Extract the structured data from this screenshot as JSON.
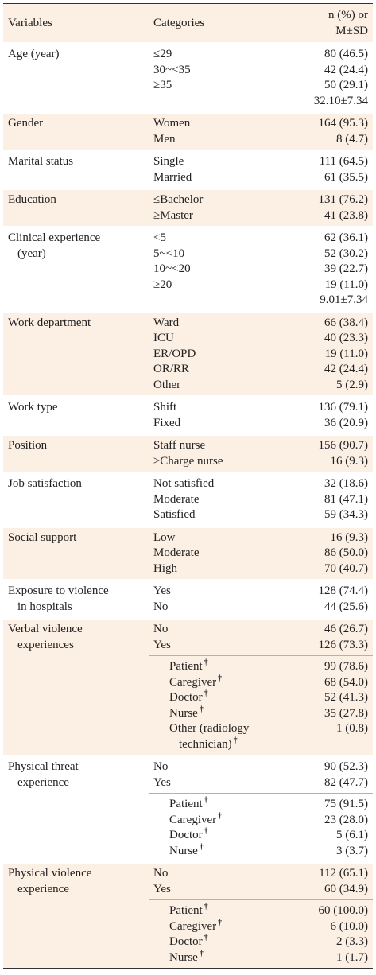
{
  "header": {
    "variables": "Variables",
    "categories": "Categories",
    "value": [
      "n (%) or",
      "M±SD"
    ]
  },
  "rows": [
    {
      "variable": "Age (year)",
      "items": [
        {
          "category": "≤29",
          "value": "80 (46.5)"
        },
        {
          "category": "30~<35",
          "value": "42 (24.4)"
        },
        {
          "category": "≥35",
          "value": "50 (29.1)"
        },
        {
          "value": "32.10±7.34"
        }
      ]
    },
    {
      "variable": "Gender",
      "items": [
        {
          "category": "Women",
          "value": "164 (95.3)"
        },
        {
          "category": "Men",
          "value": "8 (4.7)"
        }
      ]
    },
    {
      "variable": "Marital status",
      "items": [
        {
          "category": "Single",
          "value": "111 (64.5)"
        },
        {
          "category": "Married",
          "value": "61 (35.5)"
        }
      ]
    },
    {
      "variable": "Education",
      "items": [
        {
          "category": "≤Bachelor",
          "value": "131 (76.2)"
        },
        {
          "category": "≥Master",
          "value": "41 (23.8)"
        }
      ]
    },
    {
      "variable": [
        "Clinical experience",
        "(year)"
      ],
      "items": [
        {
          "category": "<5",
          "value": "62 (36.1)"
        },
        {
          "category": "5~<10",
          "value": "52 (30.2)"
        },
        {
          "category": "10~<20",
          "value": "39 (22.7)"
        },
        {
          "category": "≥20",
          "value": "19 (11.0)"
        },
        {
          "value": "9.01±7.34"
        }
      ]
    },
    {
      "variable": "Work department",
      "items": [
        {
          "category": "Ward",
          "value": "66 (38.4)"
        },
        {
          "category": "ICU",
          "value": "40 (23.3)"
        },
        {
          "category": "ER/OPD",
          "value": "19 (11.0)"
        },
        {
          "category": "OR/RR",
          "value": "42 (24.4)"
        },
        {
          "category": "Other",
          "value": "5 (2.9)"
        }
      ]
    },
    {
      "variable": "Work type",
      "items": [
        {
          "category": "Shift",
          "value": "136 (79.1)"
        },
        {
          "category": "Fixed",
          "value": "36 (20.9)"
        }
      ]
    },
    {
      "variable": "Position",
      "items": [
        {
          "category": "Staff nurse",
          "value": "156 (90.7)"
        },
        {
          "category": "≥Charge nurse",
          "value": "16 (9.3)"
        }
      ]
    },
    {
      "variable": "Job satisfaction",
      "items": [
        {
          "category": "Not satisfied",
          "value": "32 (18.6)"
        },
        {
          "category": "Moderate",
          "value": "81 (47.1)"
        },
        {
          "category": "Satisfied",
          "value": "59 (34.3)"
        }
      ]
    },
    {
      "variable": "Social support",
      "items": [
        {
          "category": "Low",
          "value": "16 (9.3)"
        },
        {
          "category": "Moderate",
          "value": "86 (50.0)"
        },
        {
          "category": "High",
          "value": "70 (40.7)"
        }
      ]
    },
    {
      "variable": [
        "Exposure to violence",
        "in hospitals"
      ],
      "items": [
        {
          "category": "Yes",
          "value": "128 (74.4)"
        },
        {
          "category": "No",
          "value": "44 (25.6)"
        }
      ]
    },
    {
      "variable": [
        "Verbal violence",
        "experiences"
      ],
      "items": [
        {
          "category": "No",
          "value": "46 (26.7)"
        },
        {
          "category": "Yes",
          "value": "126 (73.3)"
        }
      ],
      "subitems": [
        {
          "category": "Patient",
          "mark": "†",
          "value": "99 (78.6)"
        },
        {
          "category": "Caregiver",
          "mark": "†",
          "value": "68 (54.0)"
        },
        {
          "category": "Doctor",
          "mark": "†",
          "value": "52 (41.3)"
        },
        {
          "category": "Nurse",
          "mark": "†",
          "value": "35 (27.8)"
        },
        {
          "category": [
            "Other (radiology",
            "technician)"
          ],
          "mark": "†",
          "value": "1 (0.8)"
        }
      ]
    },
    {
      "variable": [
        "Physical threat",
        "experience"
      ],
      "items": [
        {
          "category": "No",
          "value": "90 (52.3)"
        },
        {
          "category": "Yes",
          "value": "82 (47.7)"
        }
      ],
      "subitems": [
        {
          "category": "Patient",
          "mark": "†",
          "value": "75 (91.5)"
        },
        {
          "category": "Caregiver",
          "mark": "†",
          "value": "23 (28.0)"
        },
        {
          "category": "Doctor",
          "mark": "†",
          "value": "5 (6.1)"
        },
        {
          "category": "Nurse",
          "mark": "†",
          "value": "3 (3.7)"
        }
      ]
    },
    {
      "variable": [
        "Physical violence",
        "experience"
      ],
      "items": [
        {
          "category": "No",
          "value": "112 (65.1)"
        },
        {
          "category": "Yes",
          "value": "60 (34.9)"
        }
      ],
      "subitems": [
        {
          "category": "Patient",
          "mark": "†",
          "value": "60 (100.0)"
        },
        {
          "category": "Caregiver",
          "mark": "†",
          "value": "6 (10.0)"
        },
        {
          "category": "Doctor",
          "mark": "†",
          "value": "2 (3.3)"
        },
        {
          "category": "Nurse",
          "mark": "†",
          "value": "1 (1.7)"
        }
      ]
    }
  ]
}
